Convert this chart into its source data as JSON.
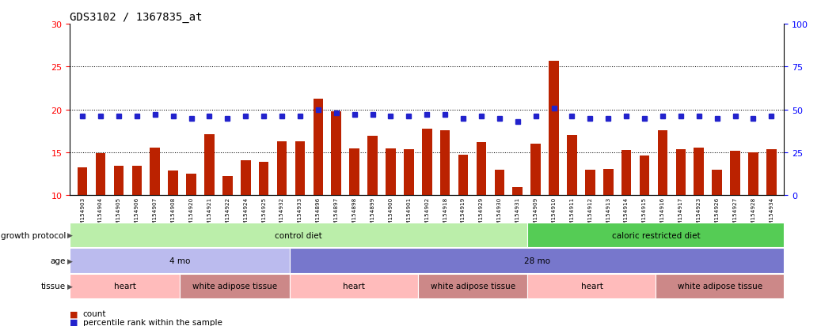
{
  "title": "GDS3102 / 1367835_at",
  "samples": [
    "GSM154903",
    "GSM154904",
    "GSM154905",
    "GSM154906",
    "GSM154907",
    "GSM154908",
    "GSM154920",
    "GSM154921",
    "GSM154922",
    "GSM154924",
    "GSM154925",
    "GSM154932",
    "GSM154933",
    "GSM154896",
    "GSM154897",
    "GSM154898",
    "GSM154899",
    "GSM154900",
    "GSM154901",
    "GSM154902",
    "GSM154918",
    "GSM154919",
    "GSM154929",
    "GSM154930",
    "GSM154931",
    "GSM154909",
    "GSM154910",
    "GSM154911",
    "GSM154912",
    "GSM154913",
    "GSM154914",
    "GSM154915",
    "GSM154916",
    "GSM154917",
    "GSM154923",
    "GSM154926",
    "GSM154927",
    "GSM154928",
    "GSM154934"
  ],
  "counts": [
    13.3,
    14.9,
    13.4,
    13.4,
    15.6,
    12.9,
    12.5,
    17.1,
    12.2,
    14.1,
    13.9,
    16.3,
    16.3,
    21.3,
    19.8,
    15.5,
    16.9,
    15.5,
    15.4,
    17.8,
    17.6,
    14.7,
    16.2,
    13.0,
    11.0,
    16.0,
    25.7,
    17.0,
    13.0,
    13.1,
    15.3,
    14.6,
    17.6,
    15.4,
    15.6,
    13.0,
    15.2,
    15.0,
    15.4
  ],
  "percentiles": [
    46,
    46,
    46,
    46,
    47,
    46,
    45,
    46,
    45,
    46,
    46,
    46,
    46,
    50,
    48,
    47,
    47,
    46,
    46,
    47,
    47,
    45,
    46,
    45,
    43,
    46,
    51,
    46,
    45,
    45,
    46,
    45,
    46,
    46,
    46,
    45,
    46,
    45,
    46
  ],
  "bar_color": "#bb2200",
  "dot_color": "#2222cc",
  "ylim_left": [
    10,
    30
  ],
  "ylim_right": [
    0,
    100
  ],
  "yticks_left": [
    10,
    15,
    20,
    25,
    30
  ],
  "yticks_right": [
    0,
    25,
    50,
    75,
    100
  ],
  "hlines": [
    15.0,
    20.0,
    25.0
  ],
  "growth_protocol_groups": [
    {
      "label": "control diet",
      "start": 0,
      "end": 25,
      "color": "#bbeeaa"
    },
    {
      "label": "caloric restricted diet",
      "start": 25,
      "end": 39,
      "color": "#55cc55"
    }
  ],
  "age_groups": [
    {
      "label": "4 mo",
      "start": 0,
      "end": 12,
      "color": "#bbbbee"
    },
    {
      "label": "28 mo",
      "start": 12,
      "end": 39,
      "color": "#7777cc"
    }
  ],
  "tissue_groups": [
    {
      "label": "heart",
      "start": 0,
      "end": 6,
      "color": "#ffbbbb"
    },
    {
      "label": "white adipose tissue",
      "start": 6,
      "end": 12,
      "color": "#cc8888"
    },
    {
      "label": "heart",
      "start": 12,
      "end": 19,
      "color": "#ffbbbb"
    },
    {
      "label": "white adipose tissue",
      "start": 19,
      "end": 25,
      "color": "#cc8888"
    },
    {
      "label": "heart",
      "start": 25,
      "end": 32,
      "color": "#ffbbbb"
    },
    {
      "label": "white adipose tissue",
      "start": 32,
      "end": 39,
      "color": "#cc8888"
    }
  ],
  "legend_count_color": "#bb2200",
  "legend_pct_color": "#2222cc",
  "background_color": "#ffffff"
}
